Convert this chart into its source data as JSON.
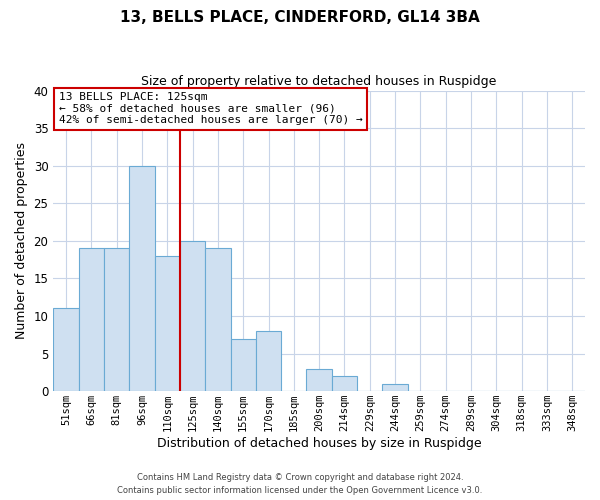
{
  "title": "13, BELLS PLACE, CINDERFORD, GL14 3BA",
  "subtitle": "Size of property relative to detached houses in Ruspidge",
  "xlabel": "Distribution of detached houses by size in Ruspidge",
  "ylabel": "Number of detached properties",
  "bar_labels": [
    "51sqm",
    "66sqm",
    "81sqm",
    "96sqm",
    "110sqm",
    "125sqm",
    "140sqm",
    "155sqm",
    "170sqm",
    "185sqm",
    "200sqm",
    "214sqm",
    "229sqm",
    "244sqm",
    "259sqm",
    "274sqm",
    "289sqm",
    "304sqm",
    "318sqm",
    "333sqm",
    "348sqm"
  ],
  "bar_heights": [
    11,
    19,
    19,
    30,
    18,
    20,
    19,
    7,
    8,
    0,
    3,
    2,
    0,
    1,
    0,
    0,
    0,
    0,
    0,
    0,
    0
  ],
  "bar_color": "#cfe0f1",
  "bar_edge_color": "#6aaad4",
  "highlight_line_color": "#cc0000",
  "annotation_title": "13 BELLS PLACE: 125sqm",
  "annotation_line1": "← 58% of detached houses are smaller (96)",
  "annotation_line2": "42% of semi-detached houses are larger (70) →",
  "annotation_box_color": "#ffffff",
  "annotation_box_edge": "#cc0000",
  "ylim": [
    0,
    40
  ],
  "yticks": [
    0,
    5,
    10,
    15,
    20,
    25,
    30,
    35,
    40
  ],
  "footer_line1": "Contains HM Land Registry data © Crown copyright and database right 2024.",
  "footer_line2": "Contains public sector information licensed under the Open Government Licence v3.0.",
  "bg_color": "#ffffff",
  "grid_color": "#c8d4e8"
}
